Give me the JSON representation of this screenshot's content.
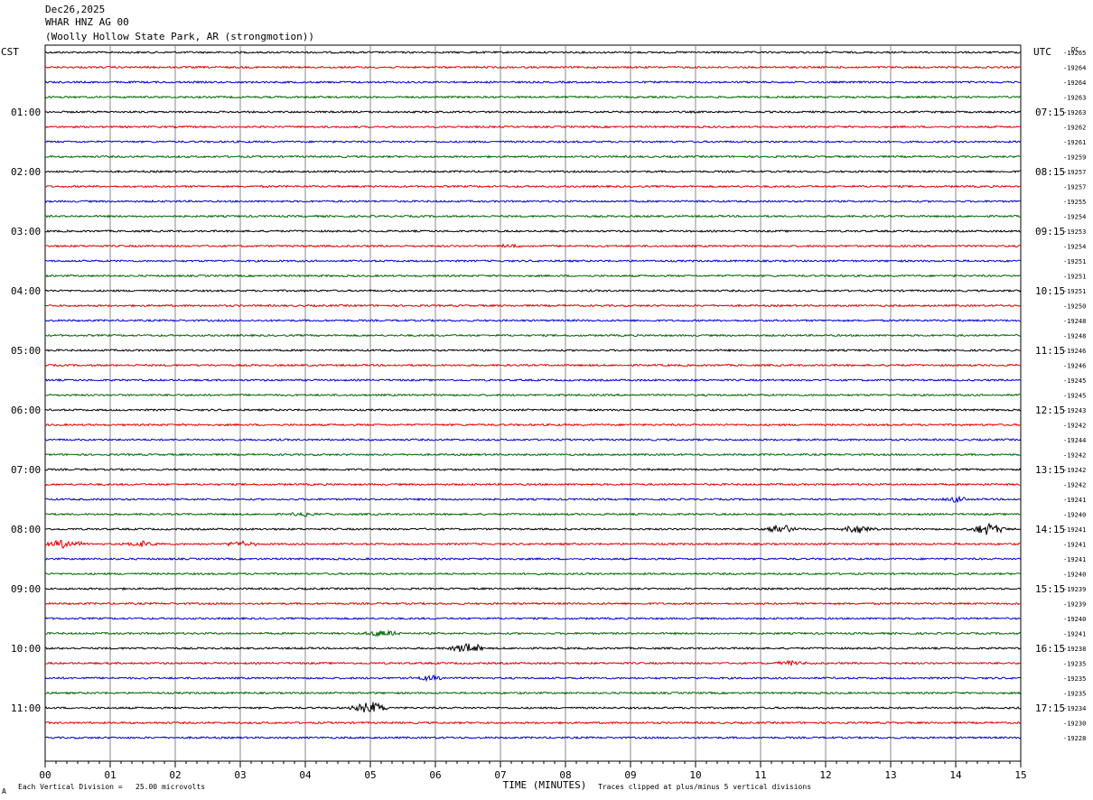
{
  "header": {
    "date": "Dec26,2025",
    "station": "WHAR HNZ AG 00",
    "location": "(Woolly Hollow State Park, AR (strongmotion))"
  },
  "footer": {
    "scale_note": "Each Vertical Division =   25.00 microvolts",
    "clip_note": "Traces clipped at plus/minus 5 vertical divisions",
    "corner_mark": "A"
  },
  "chart_data": {
    "type": "line",
    "title": "",
    "xlabel": "TIME (MINUTES)",
    "left_axis_label": "CST",
    "right_axis_label": "UTC",
    "dc_label": "DC",
    "xlim": [
      0,
      15
    ],
    "x_ticks": [
      "00",
      "01",
      "02",
      "03",
      "04",
      "05",
      "06",
      "07",
      "08",
      "09",
      "10",
      "11",
      "12",
      "13",
      "14",
      "15"
    ],
    "grid": true,
    "trace_colors": [
      "#000000",
      "#dd0000",
      "#0000cc",
      "#006600"
    ],
    "cst_hour_labels": [
      "01:00",
      "02:00",
      "03:00",
      "04:00",
      "05:00",
      "06:00",
      "07:00",
      "08:00",
      "09:00",
      "10:00",
      "11:00"
    ],
    "utc_hour_labels": [
      "07:15",
      "08:15",
      "09:15",
      "10:15",
      "11:15",
      "12:15",
      "13:15",
      "14:15",
      "15:15",
      "16:15",
      "17:15"
    ],
    "dc_offsets": [
      "-19265",
      "-19264",
      "-19264",
      "-19263",
      "-19263",
      "-19262",
      "-19261",
      "-19259",
      "-19257",
      "-19257",
      "-19255",
      "-19254",
      "-19253",
      "-19254",
      "-19251",
      "-19251",
      "-19251",
      "-19250",
      "-19248",
      "-19248",
      "-19246",
      "-19246",
      "-19245",
      "-19245",
      "-19243",
      "-19242",
      "-19244",
      "-19242",
      "-19242",
      "-19242",
      "-19241",
      "-19240",
      "-19241",
      "-19241",
      "-19241",
      "-19240",
      "-19239",
      "-19239",
      "-19240",
      "-19241",
      "-19238",
      "-19235",
      "-19235",
      "-19235",
      "-19234",
      "-19230",
      "-19228"
    ],
    "events": [
      {
        "trace": 13,
        "minute": 7.2,
        "amplitude": 2
      },
      {
        "trace": 30,
        "minute": 14.0,
        "amplitude": 3
      },
      {
        "trace": 31,
        "minute": 4.0,
        "amplitude": 2
      },
      {
        "trace": 32,
        "minute": 11.3,
        "amplitude": 6
      },
      {
        "trace": 32,
        "minute": 12.5,
        "amplitude": 5
      },
      {
        "trace": 32,
        "minute": 14.5,
        "amplitude": 7
      },
      {
        "trace": 33,
        "minute": 0.3,
        "amplitude": 5
      },
      {
        "trace": 33,
        "minute": 1.5,
        "amplitude": 3
      },
      {
        "trace": 33,
        "minute": 3.0,
        "amplitude": 3
      },
      {
        "trace": 39,
        "minute": 5.2,
        "amplitude": 4
      },
      {
        "trace": 40,
        "minute": 6.5,
        "amplitude": 6
      },
      {
        "trace": 41,
        "minute": 11.5,
        "amplitude": 3
      },
      {
        "trace": 42,
        "minute": 5.9,
        "amplitude": 3
      },
      {
        "trace": 44,
        "minute": 5.0,
        "amplitude": 7
      },
      {
        "trace": 47,
        "minute": 0.2,
        "amplitude": 4
      }
    ]
  }
}
